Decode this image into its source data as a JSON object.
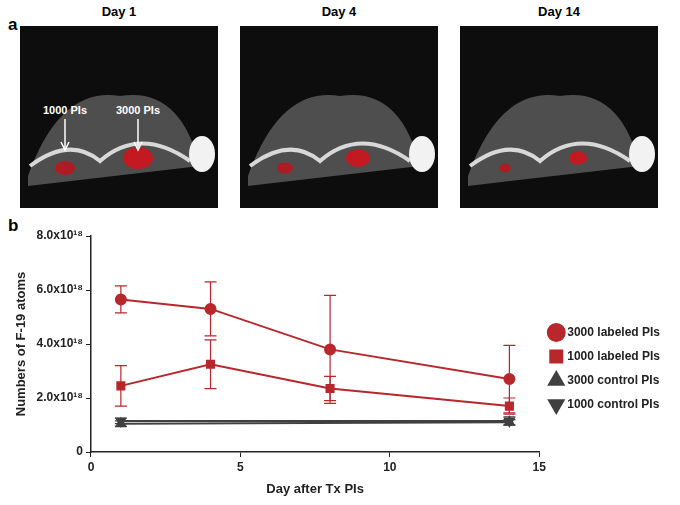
{
  "panel_a": {
    "label": "a",
    "images": [
      {
        "title": "Day 1",
        "annotations": [
          "1000 PIs",
          "3000 PIs"
        ]
      },
      {
        "title": "Day 4",
        "annotations": []
      },
      {
        "title": "Day 14",
        "annotations": []
      }
    ]
  },
  "panel_b_label": "b",
  "chart_data": {
    "type": "line",
    "x_label": "Day after Tx PIs",
    "y_label": "Numbers of F-19 atoms",
    "xlim": [
      0,
      15
    ],
    "xticks": [
      0,
      5,
      10,
      15
    ],
    "ylim": [
      0,
      8e+18
    ],
    "yticks": [
      0,
      {
        "value": 2e+18,
        "label": "2.0x10¹⁸"
      },
      {
        "value": 4e+18,
        "label": "4.0x10¹⁸"
      },
      {
        "value": 6e+18,
        "label": "6.0x10¹⁸"
      },
      {
        "value": 8e+18,
        "label": "8.0x10¹⁸"
      }
    ],
    "grid": false,
    "legend": "right",
    "series": [
      {
        "name": "3000 labeled PIs",
        "color": "#b8272c",
        "marker": "circle",
        "x": [
          1,
          4,
          8,
          14
        ],
        "values": [
          5.65e+18,
          5.3e+18,
          3.8e+18,
          2.7e+18
        ],
        "errors": [
          5e+17,
          1e+18,
          2e+18,
          1.25e+18
        ]
      },
      {
        "name": "1000 labeled PIs",
        "color": "#b8272c",
        "marker": "square",
        "x": [
          1,
          4,
          8,
          14
        ],
        "values": [
          2.45e+18,
          3.25e+18,
          2.35e+18,
          1.7e+18
        ],
        "errors": [
          7.5e+17,
          9e+17,
          4.5e+17,
          3e+17
        ]
      },
      {
        "name": "3000 control PIs",
        "color": "#404040",
        "marker": "triangle",
        "x": [
          1,
          14
        ],
        "values": [
          1.05e+18,
          1.1e+18
        ],
        "errors": [
          1e+17,
          1e+17
        ]
      },
      {
        "name": "1000 control PIs",
        "color": "#404040",
        "marker": "triangle-down",
        "x": [
          1,
          14
        ],
        "values": [
          1.15e+18,
          1.15e+18
        ],
        "errors": [
          1e+17,
          1.5e+17
        ]
      }
    ]
  }
}
